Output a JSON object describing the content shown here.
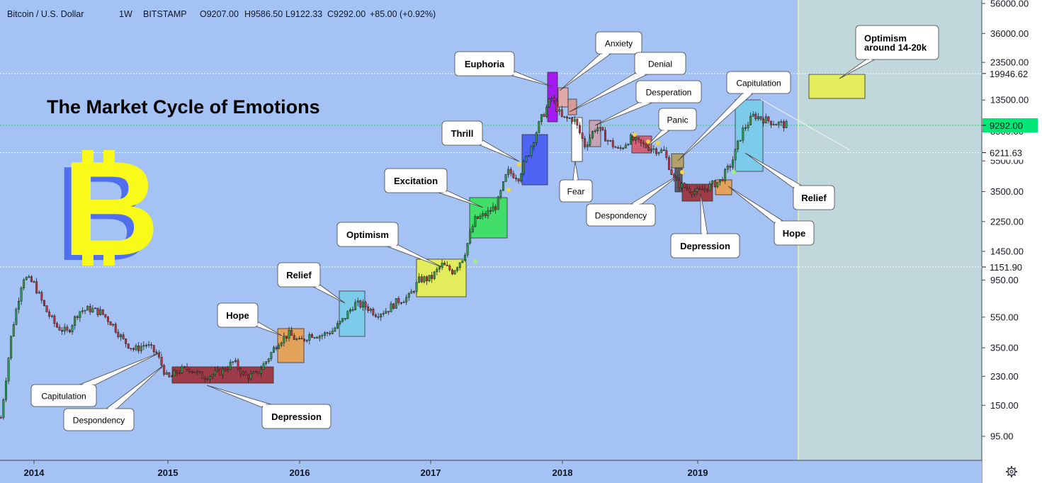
{
  "header": {
    "symbol": "Bitcoin / U.S. Dollar",
    "interval": "1W",
    "exchange": "BITSTAMP",
    "open": "O9207.00",
    "high": "H9586.50",
    "low": "L9122.33",
    "close": "C9292.00",
    "change": "+85.00 (+0.92%)"
  },
  "title": "The Market Cycle of Emotions",
  "logo_letter": "B",
  "settings_icon": "gear-icon",
  "chart_data": {
    "type": "candlestick",
    "scale": "log",
    "y_ticks": [
      "56000.00",
      "36000.00",
      "23500.00",
      "13500.00",
      "8500.00",
      "5500.00",
      "3500.00",
      "2250.00",
      "1450.00",
      "950.00",
      "550.00",
      "350.00",
      "230.00",
      "150.00",
      "95.00"
    ],
    "price_labels": [
      {
        "label": "19946.62",
        "value": 19946.62,
        "color": "#ffffff"
      },
      {
        "label": "9292.00",
        "value": 9292.0,
        "color": "#00e676"
      },
      {
        "label": "6211.63",
        "value": 6211.63,
        "color": "#ffffff"
      },
      {
        "label": "1151.90",
        "value": 1151.9,
        "color": "#ffffff"
      }
    ],
    "x_labels": [
      "2014",
      "2015",
      "2016",
      "2017",
      "2018",
      "2019"
    ],
    "series": [
      {
        "name": "",
        "type": "candles",
        "points": [
          [
            "2013-10",
            125
          ],
          [
            "2013-11",
            450
          ],
          [
            "2013-12",
            1000
          ],
          [
            "2014-01",
            900
          ],
          [
            "2014-02",
            620
          ],
          [
            "2014-03",
            480
          ],
          [
            "2014-04",
            440
          ],
          [
            "2014-05",
            600
          ],
          [
            "2014-06",
            620
          ],
          [
            "2014-07",
            590
          ],
          [
            "2014-08",
            500
          ],
          [
            "2014-09",
            390
          ],
          [
            "2014-10",
            340
          ],
          [
            "2014-11",
            370
          ],
          [
            "2014-12",
            320
          ],
          [
            "2015-01",
            220
          ],
          [
            "2015-02",
            250
          ],
          [
            "2015-03",
            260
          ],
          [
            "2015-04",
            230
          ],
          [
            "2015-05",
            235
          ],
          [
            "2015-06",
            250
          ],
          [
            "2015-07",
            285
          ],
          [
            "2015-08",
            230
          ],
          [
            "2015-09",
            235
          ],
          [
            "2015-10",
            290
          ],
          [
            "2015-11",
            380
          ],
          [
            "2015-12",
            430
          ],
          [
            "2016-01",
            380
          ],
          [
            "2016-02",
            430
          ],
          [
            "2016-03",
            420
          ],
          [
            "2016-04",
            450
          ],
          [
            "2016-05",
            530
          ],
          [
            "2016-06",
            670
          ],
          [
            "2016-07",
            650
          ],
          [
            "2016-08",
            580
          ],
          [
            "2016-09",
            610
          ],
          [
            "2016-10",
            700
          ],
          [
            "2016-11",
            740
          ],
          [
            "2016-12",
            960
          ],
          [
            "2017-01",
            970
          ],
          [
            "2017-02",
            1190
          ],
          [
            "2017-03",
            1080
          ],
          [
            "2017-04",
            1350
          ],
          [
            "2017-05",
            2300
          ],
          [
            "2017-06",
            2500
          ],
          [
            "2017-07",
            2850
          ],
          [
            "2017-08",
            4700
          ],
          [
            "2017-09",
            4340
          ],
          [
            "2017-10",
            6400
          ],
          [
            "2017-11",
            10000
          ],
          [
            "2017-12",
            14000
          ],
          [
            "2018-01",
            10200
          ],
          [
            "2018-02",
            10300
          ],
          [
            "2018-03",
            6900
          ],
          [
            "2018-04",
            9200
          ],
          [
            "2018-05",
            7500
          ],
          [
            "2018-06",
            6400
          ],
          [
            "2018-07",
            7700
          ],
          [
            "2018-08",
            7000
          ],
          [
            "2018-09",
            6600
          ],
          [
            "2018-10",
            6300
          ],
          [
            "2018-11",
            4000
          ],
          [
            "2018-12",
            3700
          ],
          [
            "2019-01",
            3450
          ],
          [
            "2019-02",
            3800
          ],
          [
            "2019-03",
            4100
          ],
          [
            "2019-04",
            5300
          ],
          [
            "2019-05",
            8600
          ],
          [
            "2019-06",
            10800
          ],
          [
            "2019-07",
            10100
          ],
          [
            "2019-08",
            9600
          ],
          [
            "2019-09",
            9292
          ]
        ]
      }
    ],
    "annotations": [
      {
        "label": "Capitulation",
        "bold": false
      },
      {
        "label": "Despondency",
        "bold": false
      },
      {
        "label": "Depression",
        "bold": true
      },
      {
        "label": "Hope",
        "bold": true
      },
      {
        "label": "Relief",
        "bold": true
      },
      {
        "label": "Optimism",
        "bold": true
      },
      {
        "label": "Excitation",
        "bold": true
      },
      {
        "label": "Thrill",
        "bold": true
      },
      {
        "label": "Euphoria",
        "bold": true
      },
      {
        "label": "Anxiety",
        "bold": false
      },
      {
        "label": "Denial",
        "bold": false
      },
      {
        "label": "Desperation",
        "bold": false
      },
      {
        "label": "Fear",
        "bold": false
      },
      {
        "label": "Panic",
        "bold": false
      },
      {
        "label": "Despondency",
        "bold": false
      },
      {
        "label": "Capitulation",
        "bold": false
      },
      {
        "label": "Depression",
        "bold": true
      },
      {
        "label": "Hope",
        "bold": true
      },
      {
        "label": "Relief",
        "bold": true
      },
      {
        "label": "Optimism\naround 14-20k",
        "bold": true
      }
    ],
    "zone_colors": {
      "depression": "#c0504d",
      "hope": "#f2a541",
      "relief": "#7ed6f7",
      "optimism": "#e6f04a",
      "excitation": "#3ddc5b",
      "thrill": "#4a68f0",
      "euphoria": "#a020f0",
      "anxiety": "#e0a0a0",
      "fear": "#ffffff",
      "projection": "#e6f04a"
    },
    "grid": false
  }
}
